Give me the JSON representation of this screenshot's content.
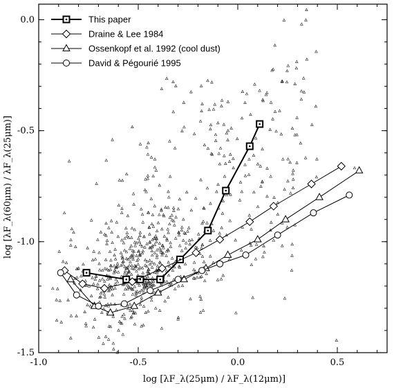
{
  "chart_data": {
    "type": "scatter",
    "xlabel": "log [λF_λ(25μm) / λF_λ(12μm)]",
    "ylabel": "log [λF_λ(60μm) / λF_λ(25μm)]",
    "xlim": [
      -1.0,
      0.75
    ],
    "ylim": [
      -1.5,
      0.07
    ],
    "x_ticks": [
      "-1.0",
      "-0.5",
      "0.0",
      "0.5"
    ],
    "x_tick_values": [
      -1.0,
      -0.5,
      0.0,
      0.5
    ],
    "y_ticks": [
      "0.0",
      "-0.5",
      "-1.0",
      "-1.5"
    ],
    "y_tick_values": [
      0.0,
      -0.5,
      -1.0,
      -1.5
    ],
    "grid": false,
    "legend_position": "top-left",
    "series": [
      {
        "name": "This paper",
        "marker": "square-dot",
        "line_width": 2,
        "x": [
          -0.76,
          -0.56,
          -0.49,
          -0.39,
          -0.29,
          -0.15,
          -0.06,
          0.06,
          0.11
        ],
        "y": [
          -1.14,
          -1.17,
          -1.17,
          -1.17,
          -1.08,
          -0.95,
          -0.77,
          -0.57,
          -0.47
        ]
      },
      {
        "name": "Draine & Lee 1984",
        "marker": "diamond",
        "line_width": 1,
        "x": [
          -0.87,
          -0.78,
          -0.67,
          -0.53,
          -0.38,
          -0.21,
          -0.09,
          0.06,
          0.18,
          0.37,
          0.52
        ],
        "y": [
          -1.13,
          -1.19,
          -1.21,
          -1.18,
          -1.12,
          -1.05,
          -0.99,
          -0.91,
          -0.84,
          -0.74,
          -0.66
        ]
      },
      {
        "name": "Ossenkopf et al. 1992 (cool dust)",
        "marker": "triangle",
        "line_width": 1,
        "x": [
          -0.84,
          -0.72,
          -0.64,
          -0.52,
          -0.4,
          -0.27,
          -0.16,
          -0.05,
          0.1,
          0.24,
          0.41,
          0.61
        ],
        "y": [
          -1.17,
          -1.29,
          -1.32,
          -1.29,
          -1.23,
          -1.17,
          -1.12,
          -1.06,
          -0.99,
          -0.9,
          -0.8,
          -0.68
        ]
      },
      {
        "name": "David & Pégourié 1995",
        "marker": "circle",
        "line_width": 1,
        "x": [
          -0.89,
          -0.81,
          -0.7,
          -0.57,
          -0.44,
          -0.3,
          -0.18,
          -0.09,
          0.04,
          0.2,
          0.38,
          0.56
        ],
        "y": [
          -1.14,
          -1.24,
          -1.29,
          -1.28,
          -1.22,
          -1.17,
          -1.13,
          -1.1,
          -1.06,
          -0.97,
          -0.87,
          -0.79
        ]
      }
    ],
    "scatter_points": {
      "marker": "small-triangle",
      "seed": 7,
      "approx_count": 720,
      "note_region": "cloud of IRAS sources"
    }
  }
}
